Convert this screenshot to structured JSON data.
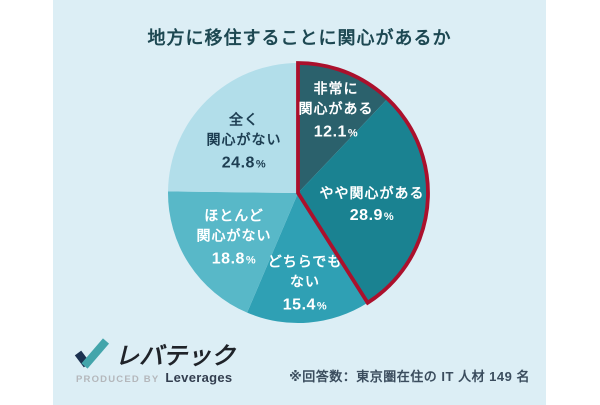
{
  "card": {
    "background_color": "#dceef5"
  },
  "title": "地方に移住することに関心があるか",
  "chart_data": {
    "type": "pie",
    "title": "地方に移住することに関心があるか",
    "unit": "%",
    "start_angle_deg": 0,
    "direction": "clockwise",
    "segments": [
      {
        "label": "非常に関心がある",
        "label_lines": [
          "非常に",
          "関心がある"
        ],
        "value": 12.1,
        "color": "#2b616c",
        "text_color": "#ffffff",
        "highlighted": true
      },
      {
        "label": "やや関心がある",
        "label_lines": [
          "やや関心がある"
        ],
        "value": 28.9,
        "color": "#1a8291",
        "text_color": "#ffffff",
        "highlighted": true
      },
      {
        "label": "どちらでもない",
        "label_lines": [
          "どちらでも",
          "ない"
        ],
        "value": 15.4,
        "color": "#2fa0b4",
        "text_color": "#ffffff",
        "highlighted": false
      },
      {
        "label": "ほとんど関心がない",
        "label_lines": [
          "ほとんど",
          "関心がない"
        ],
        "value": 18.8,
        "color": "#58b8c8",
        "text_color": "#ffffff",
        "highlighted": false
      },
      {
        "label": "全く関心がない",
        "label_lines": [
          "全く",
          "関心がない"
        ],
        "value": 24.8,
        "color": "#b2deea",
        "text_color": "#1d3e52",
        "highlighted": false
      }
    ],
    "highlight_outline_color": "#ab102c",
    "legend_position": "none",
    "grid": false
  },
  "footer": {
    "logo_text": "レバテック",
    "produced_by": "PRODUCED BY",
    "company": "Leverages",
    "note": "※回答数：東京圏在住の IT 人材 149 名",
    "logo_colors": {
      "check_left": "#1c3150",
      "check_right": "#43a5ab"
    }
  }
}
